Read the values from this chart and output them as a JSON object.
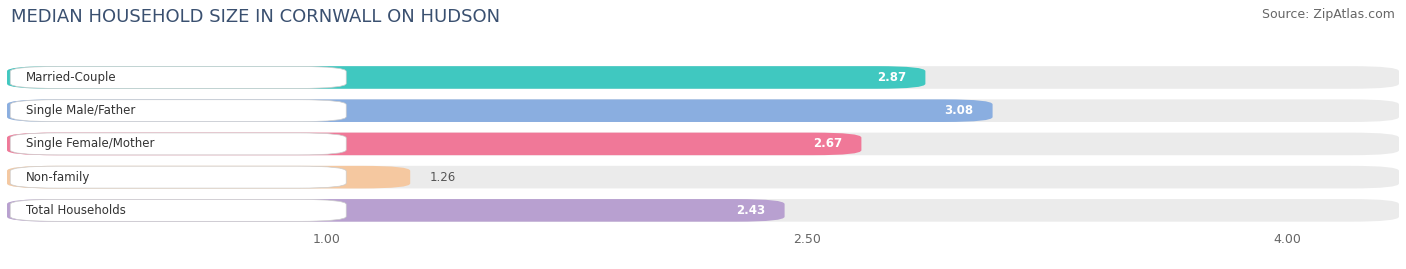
{
  "title": "MEDIAN HOUSEHOLD SIZE IN CORNWALL ON HUDSON",
  "source": "Source: ZipAtlas.com",
  "categories": [
    "Married-Couple",
    "Single Male/Father",
    "Single Female/Mother",
    "Non-family",
    "Total Households"
  ],
  "values": [
    2.87,
    3.08,
    2.67,
    1.26,
    2.43
  ],
  "bar_colors": [
    "#40c8c0",
    "#8aaee0",
    "#f07898",
    "#f5c8a0",
    "#b8a0d0"
  ],
  "xlim": [
    0.0,
    4.35
  ],
  "xmin": 0.0,
  "xticks": [
    1.0,
    2.5,
    4.0
  ],
  "xtick_labels": [
    "1.00",
    "2.50",
    "4.00"
  ],
  "bg_color": "#ffffff",
  "bar_bg_color": "#ebebeb",
  "title_fontsize": 13,
  "source_fontsize": 9,
  "label_fontsize": 8.5,
  "value_fontsize": 8.5
}
